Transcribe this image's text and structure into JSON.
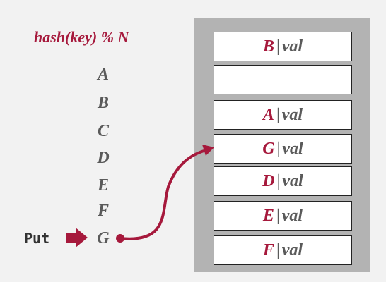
{
  "formula": "hash(key) % N",
  "put_label": "Put",
  "keys": [
    "A",
    "B",
    "C",
    "D",
    "E",
    "F",
    "G"
  ],
  "slots": [
    {
      "key": "B",
      "sep": "|",
      "val": "val"
    },
    {
      "key": "",
      "sep": "",
      "val": ""
    },
    {
      "key": "A",
      "sep": "|",
      "val": "val"
    },
    {
      "key": "G",
      "sep": "|",
      "val": "val"
    },
    {
      "key": "D",
      "sep": "|",
      "val": "val"
    },
    {
      "key": "E",
      "sep": "|",
      "val": "val"
    },
    {
      "key": "F",
      "sep": "|",
      "val": "val"
    }
  ],
  "colors": {
    "accent": "#a6193c",
    "text": "#5a5a5a",
    "table_bg": "#b3b3b3",
    "background": "#f2f2f2"
  }
}
